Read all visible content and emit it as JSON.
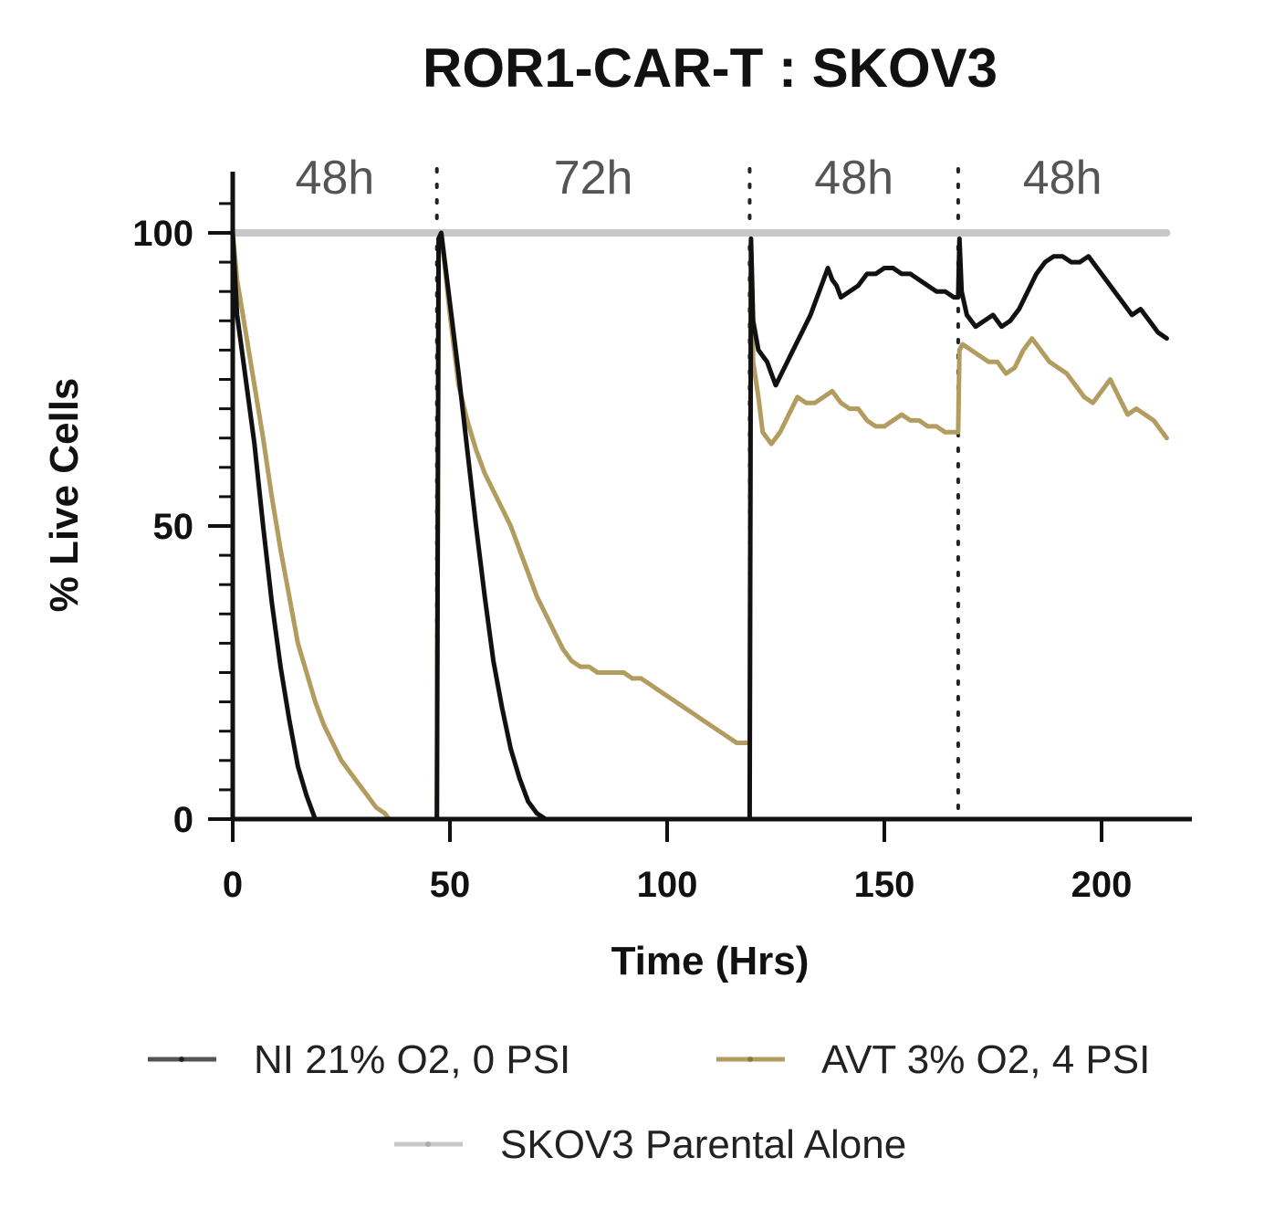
{
  "chart_data": {
    "type": "line",
    "title": "ROR1-CAR-T : SKOV3",
    "xlabel": "Time (Hrs)",
    "ylabel": "% Live Cells",
    "xlim": [
      0,
      220
    ],
    "ylim": [
      0,
      110
    ],
    "x_ticks": [
      0,
      50,
      100,
      150,
      200
    ],
    "y_ticks": [
      0,
      50,
      100
    ],
    "segments": [
      {
        "label": "48h",
        "start": 0,
        "end": 47
      },
      {
        "label": "72h",
        "start": 47,
        "end": 119
      },
      {
        "label": "48h",
        "start": 119,
        "end": 167
      },
      {
        "label": "48h",
        "start": 167,
        "end": 215
      }
    ],
    "restimulation_times": [
      47,
      119,
      167
    ],
    "legend_position": "bottom",
    "colors": {
      "ni": "#111111",
      "avt": "#b39c5f",
      "parental": "#c8c8c8"
    },
    "series": [
      {
        "name": "NI 21% O2, 0 PSI",
        "color": "#111111",
        "points": [
          [
            0,
            100
          ],
          [
            1,
            86
          ],
          [
            3,
            75
          ],
          [
            5,
            64
          ],
          [
            7,
            50
          ],
          [
            9,
            37
          ],
          [
            11,
            26
          ],
          [
            13,
            17
          ],
          [
            15,
            9
          ],
          [
            17,
            4
          ],
          [
            19,
            0
          ],
          [
            30,
            0
          ],
          [
            46.5,
            0
          ],
          [
            47,
            0
          ],
          [
            47.4,
            99
          ],
          [
            48,
            100
          ],
          [
            50,
            88
          ],
          [
            52,
            76
          ],
          [
            54,
            63
          ],
          [
            56,
            50
          ],
          [
            58,
            38
          ],
          [
            60,
            27
          ],
          [
            62,
            19
          ],
          [
            64,
            12
          ],
          [
            66,
            7
          ],
          [
            68,
            3
          ],
          [
            70,
            1
          ],
          [
            72,
            0
          ],
          [
            90,
            0
          ],
          [
            110,
            0
          ],
          [
            118.6,
            0
          ],
          [
            119,
            0
          ],
          [
            119.3,
            99
          ],
          [
            119.8,
            85
          ],
          [
            121,
            80
          ],
          [
            123,
            78
          ],
          [
            124,
            76
          ],
          [
            125,
            74
          ],
          [
            127,
            77
          ],
          [
            129,
            80
          ],
          [
            131,
            83
          ],
          [
            133,
            86
          ],
          [
            135,
            90
          ],
          [
            136,
            92
          ],
          [
            137,
            94
          ],
          [
            138,
            92
          ],
          [
            139,
            91
          ],
          [
            140,
            89
          ],
          [
            142,
            90
          ],
          [
            144,
            91
          ],
          [
            146,
            93
          ],
          [
            148,
            93
          ],
          [
            150,
            94
          ],
          [
            152,
            94
          ],
          [
            154,
            93
          ],
          [
            156,
            93
          ],
          [
            158,
            92
          ],
          [
            160,
            91
          ],
          [
            162,
            90
          ],
          [
            164,
            90
          ],
          [
            166,
            89
          ],
          [
            166.8,
            89
          ],
          [
            167,
            89
          ],
          [
            167.3,
            99
          ],
          [
            167.8,
            90
          ],
          [
            169,
            86
          ],
          [
            171,
            84
          ],
          [
            173,
            85
          ],
          [
            175,
            86
          ],
          [
            177,
            84
          ],
          [
            179,
            85
          ],
          [
            181,
            87
          ],
          [
            183,
            90
          ],
          [
            185,
            93
          ],
          [
            187,
            95
          ],
          [
            189,
            96
          ],
          [
            191,
            96
          ],
          [
            193,
            95
          ],
          [
            195,
            95
          ],
          [
            197,
            96
          ],
          [
            199,
            94
          ],
          [
            201,
            92
          ],
          [
            203,
            90
          ],
          [
            205,
            88
          ],
          [
            207,
            86
          ],
          [
            209,
            87
          ],
          [
            211,
            85
          ],
          [
            213,
            83
          ],
          [
            215,
            82
          ]
        ]
      },
      {
        "name": "AVT 3% O2, 4 PSI",
        "color": "#b39c5f",
        "points": [
          [
            0,
            100
          ],
          [
            1,
            92
          ],
          [
            3,
            83
          ],
          [
            5,
            74
          ],
          [
            7,
            65
          ],
          [
            9,
            55
          ],
          [
            11,
            46
          ],
          [
            13,
            38
          ],
          [
            15,
            30
          ],
          [
            17,
            25
          ],
          [
            19,
            20
          ],
          [
            21,
            16
          ],
          [
            23,
            13
          ],
          [
            25,
            10
          ],
          [
            27,
            8
          ],
          [
            29,
            6
          ],
          [
            31,
            4
          ],
          [
            33,
            2
          ],
          [
            35,
            1
          ],
          [
            36,
            0
          ],
          [
            46.5,
            0
          ],
          [
            47,
            0
          ],
          [
            47.4,
            99
          ],
          [
            48,
            100
          ],
          [
            50,
            86
          ],
          [
            52,
            74
          ],
          [
            54,
            68
          ],
          [
            56,
            63
          ],
          [
            58,
            59
          ],
          [
            60,
            56
          ],
          [
            62,
            53
          ],
          [
            64,
            50
          ],
          [
            66,
            46
          ],
          [
            68,
            42
          ],
          [
            70,
            38
          ],
          [
            72,
            35
          ],
          [
            74,
            32
          ],
          [
            76,
            29
          ],
          [
            78,
            27
          ],
          [
            80,
            26
          ],
          [
            82,
            26
          ],
          [
            84,
            25
          ],
          [
            86,
            25
          ],
          [
            88,
            25
          ],
          [
            90,
            25
          ],
          [
            92,
            24
          ],
          [
            94,
            24
          ],
          [
            96,
            23
          ],
          [
            98,
            22
          ],
          [
            100,
            21
          ],
          [
            102,
            20
          ],
          [
            104,
            19
          ],
          [
            106,
            18
          ],
          [
            108,
            17
          ],
          [
            110,
            16
          ],
          [
            112,
            15
          ],
          [
            114,
            14
          ],
          [
            116,
            13
          ],
          [
            118,
            13
          ],
          [
            118.6,
            13
          ],
          [
            119,
            13
          ],
          [
            119.3,
            97
          ],
          [
            119.8,
            78
          ],
          [
            121,
            72
          ],
          [
            122,
            66
          ],
          [
            124,
            64
          ],
          [
            126,
            66
          ],
          [
            128,
            69
          ],
          [
            130,
            72
          ],
          [
            132,
            71
          ],
          [
            134,
            71
          ],
          [
            136,
            72
          ],
          [
            138,
            73
          ],
          [
            140,
            71
          ],
          [
            142,
            70
          ],
          [
            144,
            70
          ],
          [
            146,
            68
          ],
          [
            148,
            67
          ],
          [
            150,
            67
          ],
          [
            152,
            68
          ],
          [
            154,
            69
          ],
          [
            156,
            68
          ],
          [
            158,
            68
          ],
          [
            160,
            67
          ],
          [
            162,
            67
          ],
          [
            164,
            66
          ],
          [
            166,
            66
          ],
          [
            166.8,
            66
          ],
          [
            167,
            66
          ],
          [
            167.3,
            80
          ],
          [
            168,
            81
          ],
          [
            170,
            80
          ],
          [
            172,
            79
          ],
          [
            174,
            78
          ],
          [
            176,
            78
          ],
          [
            178,
            76
          ],
          [
            180,
            77
          ],
          [
            182,
            80
          ],
          [
            184,
            82
          ],
          [
            186,
            80
          ],
          [
            188,
            78
          ],
          [
            190,
            77
          ],
          [
            192,
            76
          ],
          [
            194,
            74
          ],
          [
            196,
            72
          ],
          [
            198,
            71
          ],
          [
            200,
            73
          ],
          [
            202,
            75
          ],
          [
            204,
            72
          ],
          [
            206,
            69
          ],
          [
            208,
            70
          ],
          [
            210,
            69
          ],
          [
            212,
            68
          ],
          [
            214,
            66
          ],
          [
            215,
            65
          ]
        ]
      },
      {
        "name": "SKOV3 Parental Alone",
        "color": "#c8c8c8",
        "points": [
          [
            0,
            100
          ],
          [
            215,
            100
          ]
        ]
      }
    ]
  }
}
